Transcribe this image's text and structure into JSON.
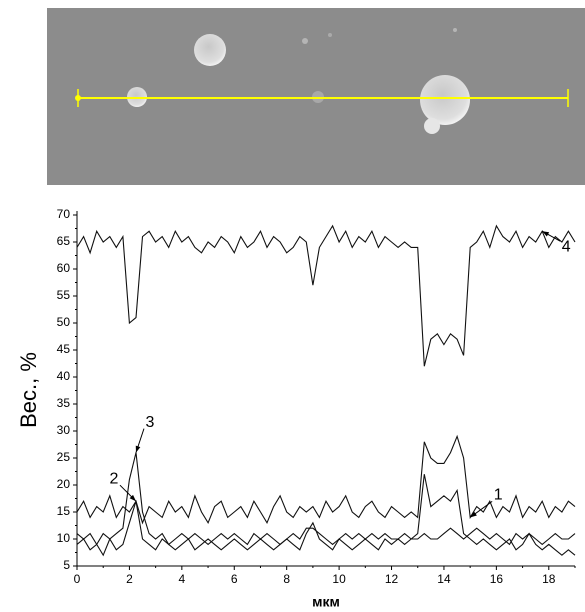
{
  "chart_data": {
    "type": "line",
    "x_label": "мкм",
    "y_label": "Вес., %",
    "xlim": [
      0,
      19
    ],
    "ylim": [
      5,
      70
    ],
    "xticks": [
      0,
      2,
      4,
      6,
      8,
      10,
      12,
      14,
      16,
      18
    ],
    "yticks": [
      5,
      10,
      15,
      20,
      25,
      30,
      35,
      40,
      45,
      50,
      55,
      60,
      65,
      70
    ],
    "x": [
      0,
      0.25,
      0.5,
      0.75,
      1,
      1.25,
      1.5,
      1.75,
      2,
      2.25,
      2.5,
      2.75,
      3,
      3.25,
      3.5,
      3.75,
      4,
      4.25,
      4.5,
      4.75,
      5,
      5.25,
      5.5,
      5.75,
      6,
      6.25,
      6.5,
      6.75,
      7,
      7.25,
      7.5,
      7.75,
      8,
      8.25,
      8.5,
      8.75,
      9,
      9.25,
      9.5,
      9.75,
      10,
      10.25,
      10.5,
      10.75,
      11,
      11.25,
      11.5,
      11.75,
      12,
      12.25,
      12.5,
      12.75,
      13,
      13.25,
      13.5,
      13.75,
      14,
      14.25,
      14.5,
      14.75,
      15,
      15.25,
      15.5,
      15.75,
      16,
      16.25,
      16.5,
      16.75,
      17,
      17.25,
      17.5,
      17.75,
      18,
      18.25,
      18.5,
      18.75,
      19
    ],
    "series": [
      {
        "name": "1",
        "color": "#111111",
        "values": [
          15,
          17,
          14,
          16,
          15,
          18,
          14,
          16,
          15,
          17,
          13,
          16,
          15,
          14,
          17,
          15,
          16,
          14,
          18,
          15,
          13,
          16,
          17,
          14,
          15,
          16,
          14,
          17,
          15,
          13,
          16,
          18,
          15,
          14,
          16,
          15,
          16,
          14,
          17,
          15,
          16,
          18,
          15,
          14,
          16,
          17,
          15,
          14,
          16,
          15,
          14,
          15,
          14,
          28,
          25,
          24,
          24,
          26,
          29,
          25,
          14,
          16,
          15,
          17,
          14,
          16,
          15,
          18,
          14,
          16,
          15,
          17,
          14,
          16,
          15,
          17,
          16
        ]
      },
      {
        "name": "2",
        "color": "#111111",
        "values": [
          9,
          10,
          8,
          9,
          11,
          10,
          8,
          9,
          13,
          17,
          10,
          9,
          8,
          10,
          9,
          8,
          9,
          10,
          8,
          9,
          10,
          9,
          8,
          9,
          10,
          9,
          8,
          9,
          10,
          9,
          8,
          9,
          10,
          9,
          8,
          11,
          13,
          10,
          9,
          8,
          10,
          9,
          8,
          9,
          10,
          9,
          8,
          10,
          9,
          10,
          9,
          10,
          11,
          22,
          16,
          17,
          18,
          17,
          19,
          11,
          10,
          9,
          10,
          9,
          8,
          9,
          10,
          8,
          9,
          11,
          9,
          8,
          9,
          8,
          7,
          8,
          7
        ]
      },
      {
        "name": "3",
        "color": "#111111",
        "values": [
          11,
          10,
          11,
          9,
          7,
          10,
          11,
          12,
          21,
          26,
          15,
          11,
          10,
          11,
          9,
          10,
          11,
          10,
          11,
          10,
          9,
          10,
          11,
          10,
          11,
          10,
          9,
          11,
          10,
          11,
          10,
          9,
          10,
          11,
          10,
          12,
          12,
          11,
          10,
          9,
          10,
          11,
          10,
          11,
          10,
          11,
          10,
          11,
          10,
          10,
          11,
          10,
          10,
          11,
          10,
          10,
          11,
          12,
          11,
          10,
          11,
          12,
          11,
          10,
          11,
          10,
          9,
          11,
          10,
          11,
          10,
          9,
          10,
          11,
          10,
          10,
          11
        ]
      },
      {
        "name": "4",
        "color": "#111111",
        "values": [
          64,
          66,
          63,
          67,
          65,
          66,
          64,
          66,
          50,
          51,
          66,
          67,
          65,
          66,
          64,
          67,
          65,
          66,
          64,
          63,
          65,
          64,
          66,
          65,
          63,
          66,
          64,
          65,
          67,
          64,
          66,
          65,
          63,
          64,
          66,
          65,
          57,
          64,
          66,
          68,
          65,
          67,
          64,
          66,
          65,
          67,
          64,
          66,
          65,
          64,
          65,
          64,
          64,
          42,
          47,
          48,
          46,
          48,
          47,
          44,
          64,
          65,
          67,
          64,
          68,
          66,
          65,
          67,
          64,
          66,
          65,
          67,
          64,
          66,
          65,
          67,
          65
        ]
      }
    ]
  }
}
